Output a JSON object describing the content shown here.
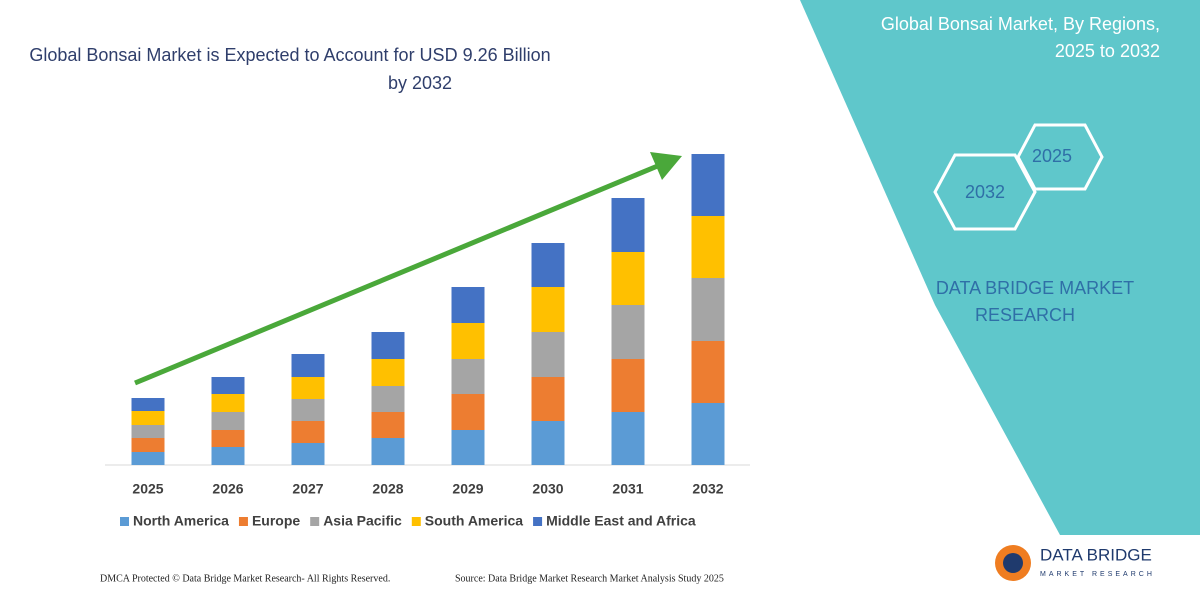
{
  "chart_data": {
    "type": "bar",
    "stacked": true,
    "title": "Global Bonsai Market is Expected to Account for USD 9.26 Billion",
    "title_line2": "by 2032",
    "categories": [
      "2025",
      "2026",
      "2027",
      "2028",
      "2029",
      "2030",
      "2031",
      "2032"
    ],
    "series": [
      {
        "name": "North America",
        "color": "#5b9bd5",
        "values": [
          13,
          18,
          22,
          27,
          35,
          44,
          53,
          62
        ]
      },
      {
        "name": "Europe",
        "color": "#ed7d31",
        "values": [
          14,
          17,
          22,
          26,
          36,
          44,
          53,
          62
        ]
      },
      {
        "name": "Asia Pacific",
        "color": "#a5a5a5",
        "values": [
          13,
          18,
          22,
          26,
          35,
          45,
          54,
          63
        ]
      },
      {
        "name": "South America",
        "color": "#ffc000",
        "values": [
          14,
          18,
          22,
          27,
          36,
          45,
          53,
          62
        ]
      },
      {
        "name": "Middle East and Africa",
        "color": "#4472c4",
        "values": [
          13,
          17,
          23,
          27,
          36,
          44,
          54,
          62
        ]
      }
    ],
    "legend": "bottom"
  },
  "panel": {
    "title_line1": "Global Bonsai Market, By Regions,",
    "title_line2": "2025 to 2032",
    "hex_labels": [
      "2032",
      "2025"
    ],
    "brand_line1": "DATA BRIDGE MARKET",
    "brand_line2": "RESEARCH"
  },
  "logo": {
    "name": "DATA BRIDGE",
    "tagline": "MARKET RESEARCH"
  },
  "footer": {
    "left": "DMCA Protected © Data Bridge Market Research- All Rights Reserved.",
    "right": "Source: Data Bridge Market Research Market Analysis Study 2025"
  }
}
